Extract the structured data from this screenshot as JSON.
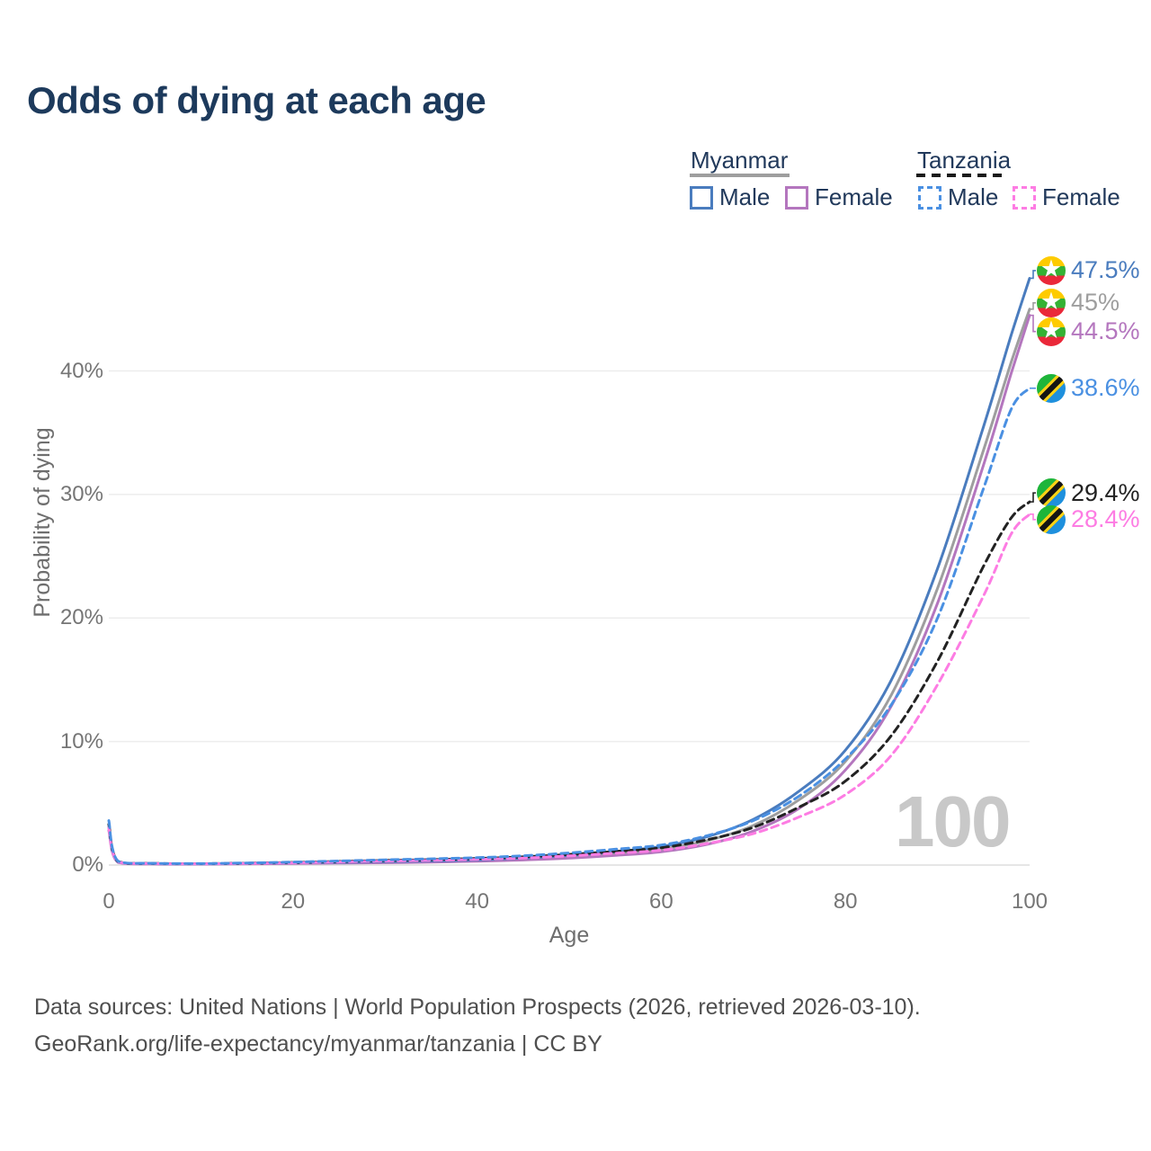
{
  "title": "Odds of dying at each age",
  "legend": {
    "groups": [
      {
        "country": "Myanmar",
        "line_style": "solid",
        "items": [
          {
            "label": "Male",
            "color": "#4a7cbe"
          },
          {
            "label": "Female",
            "color": "#b476be"
          }
        ]
      },
      {
        "country": "Tanzania",
        "line_style": "dashed",
        "items": [
          {
            "label": "Male",
            "color": "#4a90e2"
          },
          {
            "label": "Female",
            "color": "#fd7ce3"
          }
        ]
      }
    ]
  },
  "chart_data": {
    "type": "line",
    "title": "Odds of dying at each age",
    "xlabel": "Age",
    "ylabel": "Probability of dying",
    "xlim": [
      0,
      100
    ],
    "ylim_percent": [
      0,
      47.5
    ],
    "grid": "horizontal",
    "x_ticks": [
      0,
      20,
      40,
      60,
      80,
      100
    ],
    "y_ticks": [
      "0%",
      "10%",
      "20%",
      "30%",
      "40%"
    ],
    "x": [
      0,
      1,
      5,
      10,
      15,
      20,
      25,
      30,
      35,
      40,
      45,
      50,
      55,
      60,
      65,
      70,
      75,
      80,
      85,
      90,
      95,
      98,
      100
    ],
    "series": [
      {
        "name": "Myanmar Male",
        "color": "#4a7cbe",
        "dash": false,
        "flag": "myanmar",
        "end_label": "47.5%",
        "values": [
          3.3,
          0.28,
          0.12,
          0.1,
          0.14,
          0.18,
          0.22,
          0.27,
          0.33,
          0.42,
          0.56,
          0.78,
          1.08,
          1.5,
          2.3,
          3.7,
          6.0,
          9.3,
          15.0,
          24.0,
          35.5,
          42.9,
          47.5
        ]
      },
      {
        "name": "Myanmar Both sexes",
        "color": "#9e9e9e",
        "dash": false,
        "flag": "myanmar",
        "end_label": "45%",
        "values": [
          3.05,
          0.25,
          0.1,
          0.09,
          0.12,
          0.15,
          0.19,
          0.23,
          0.28,
          0.36,
          0.48,
          0.66,
          0.92,
          1.28,
          1.98,
          3.2,
          5.3,
          8.4,
          13.8,
          22.4,
          33.6,
          40.7,
          45.0
        ]
      },
      {
        "name": "Myanmar Female",
        "color": "#b476be",
        "dash": false,
        "flag": "myanmar",
        "end_label": "44.5%",
        "values": [
          2.8,
          0.22,
          0.09,
          0.08,
          0.1,
          0.13,
          0.16,
          0.19,
          0.24,
          0.31,
          0.41,
          0.56,
          0.78,
          1.08,
          1.68,
          2.75,
          4.6,
          7.7,
          12.9,
          21.2,
          32.4,
          39.8,
          44.5
        ]
      },
      {
        "name": "Tanzania Male",
        "color": "#4a90e2",
        "dash": true,
        "flag": "tanzania",
        "end_label": "38.6%",
        "values": [
          3.6,
          0.32,
          0.14,
          0.12,
          0.17,
          0.24,
          0.33,
          0.42,
          0.5,
          0.6,
          0.75,
          0.98,
          1.28,
          1.62,
          2.38,
          3.6,
          5.6,
          8.6,
          13.0,
          20.0,
          30.5,
          36.9,
          38.6
        ]
      },
      {
        "name": "Tanzania Both sexes",
        "color": "#222222",
        "dash": true,
        "flag": "tanzania",
        "end_label": "29.4%",
        "values": [
          3.3,
          0.3,
          0.13,
          0.11,
          0.15,
          0.21,
          0.29,
          0.37,
          0.44,
          0.53,
          0.66,
          0.86,
          1.1,
          1.4,
          2.05,
          3.05,
          4.7,
          6.8,
          10.5,
          16.5,
          24.2,
          28.1,
          29.4
        ]
      },
      {
        "name": "Tanzania Female",
        "color": "#fd7ce3",
        "dash": true,
        "flag": "tanzania",
        "end_label": "28.4%",
        "values": [
          3.0,
          0.28,
          0.12,
          0.1,
          0.13,
          0.18,
          0.25,
          0.32,
          0.38,
          0.46,
          0.57,
          0.74,
          0.95,
          1.2,
          1.75,
          2.55,
          3.9,
          5.7,
          8.9,
          14.6,
          21.8,
          26.8,
          28.4
        ]
      }
    ]
  },
  "watermark": "100",
  "footer": {
    "line1": "Data sources: United Nations | World Population Prospects (2026, retrieved 2026-03-10).",
    "line2": "GeoRank.org/life-expectancy/myanmar/tanzania | CC BY"
  }
}
